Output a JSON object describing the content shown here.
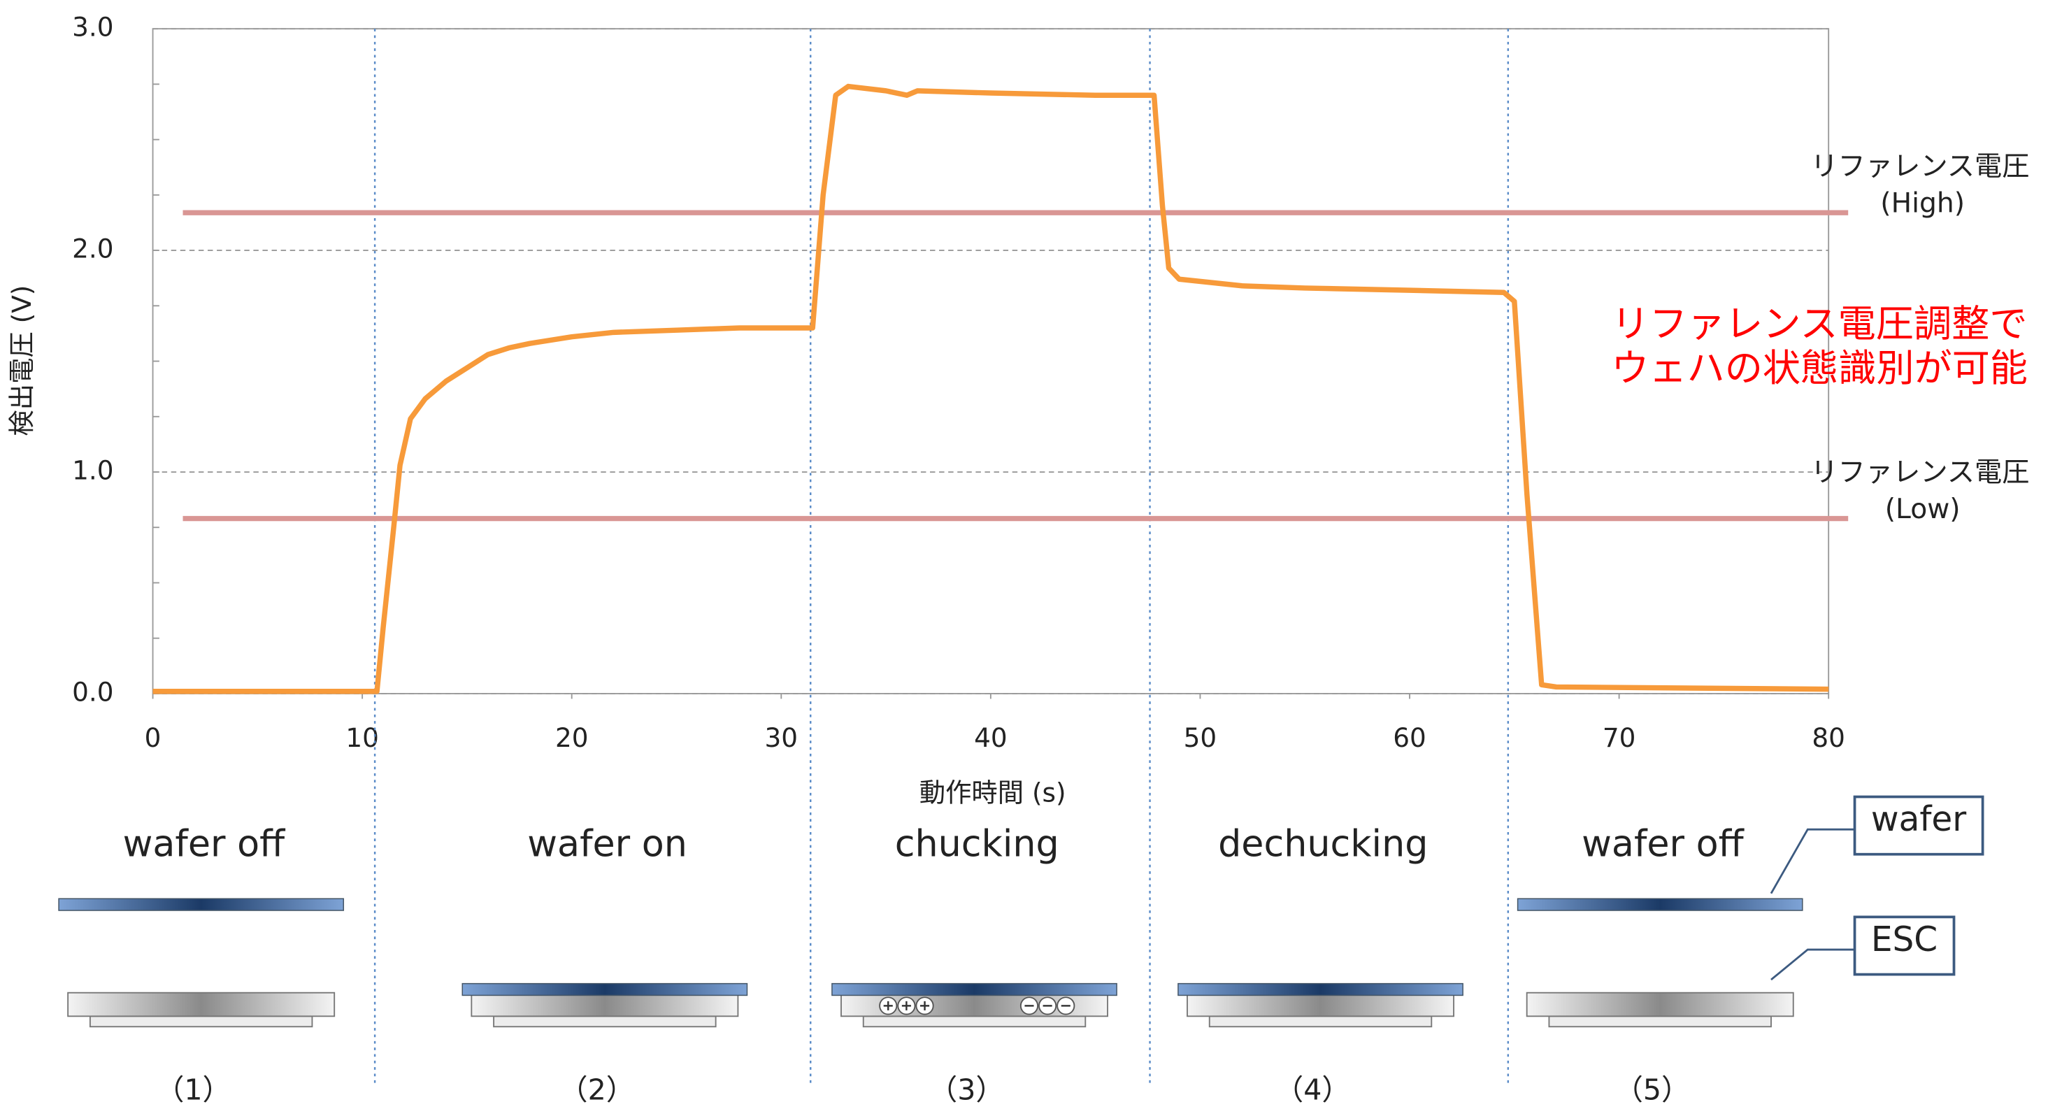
{
  "chart_data": {
    "type": "line",
    "x_label": "動作時間 (s)",
    "y_label": "検出電圧 (V)",
    "xlim": [
      0,
      80
    ],
    "ylim": [
      0,
      3
    ],
    "xticks": [
      0,
      10,
      20,
      30,
      40,
      50,
      60,
      70,
      80
    ],
    "yticks": [
      {
        "value": 0,
        "label": "0.0"
      },
      {
        "value": 1,
        "label": "1.0"
      },
      {
        "value": 2,
        "label": "2.0"
      },
      {
        "value": 3,
        "label": "3.0"
      }
    ],
    "grid": true,
    "series": [
      {
        "color": "#f79a3a",
        "x": [
          0,
          10.7,
          11,
          11.5,
          11.8,
          12.3,
          13,
          14,
          15,
          16,
          17,
          18,
          20,
          22,
          25,
          28,
          31.5,
          32,
          32.6,
          33.2,
          35,
          36,
          36.5,
          40,
          45,
          47.8,
          48.2,
          48.5,
          49,
          52,
          55,
          60,
          64.5,
          65,
          65.6,
          66.3,
          67,
          80
        ],
        "values": [
          0.01,
          0.01,
          0.3,
          0.75,
          1.03,
          1.24,
          1.33,
          1.41,
          1.47,
          1.53,
          1.56,
          1.58,
          1.61,
          1.63,
          1.64,
          1.65,
          1.65,
          2.25,
          2.7,
          2.74,
          2.72,
          2.7,
          2.72,
          2.71,
          2.7,
          2.7,
          2.2,
          1.92,
          1.87,
          1.84,
          1.83,
          1.82,
          1.81,
          1.77,
          0.9,
          0.04,
          0.03,
          0.02
        ]
      }
    ],
    "reference_lines": [
      {
        "name": "リファレンス電圧",
        "sub": "(High)",
        "value": 2.17,
        "color": "#d99694"
      },
      {
        "name": "リファレンス電圧",
        "sub": "(Low)",
        "value": 0.79,
        "color": "#d99694"
      }
    ],
    "annotation": {
      "lines": [
        "リファレンス電圧調整で",
        "ウェハの状態識別が可能"
      ],
      "color": "#ff0000"
    },
    "phase_boundaries": [
      10.6,
      31.4,
      47.6,
      64.7
    ]
  },
  "phases": [
    {
      "label": "wafer off",
      "number": "（1）"
    },
    {
      "label": "wafer on",
      "number": "（2）"
    },
    {
      "label": "chucking",
      "number": "（3）"
    },
    {
      "label": "dechucking",
      "number": "（4）"
    },
    {
      "label": "wafer off",
      "number": "（5）"
    }
  ],
  "callouts": [
    "wafer",
    "ESC"
  ]
}
